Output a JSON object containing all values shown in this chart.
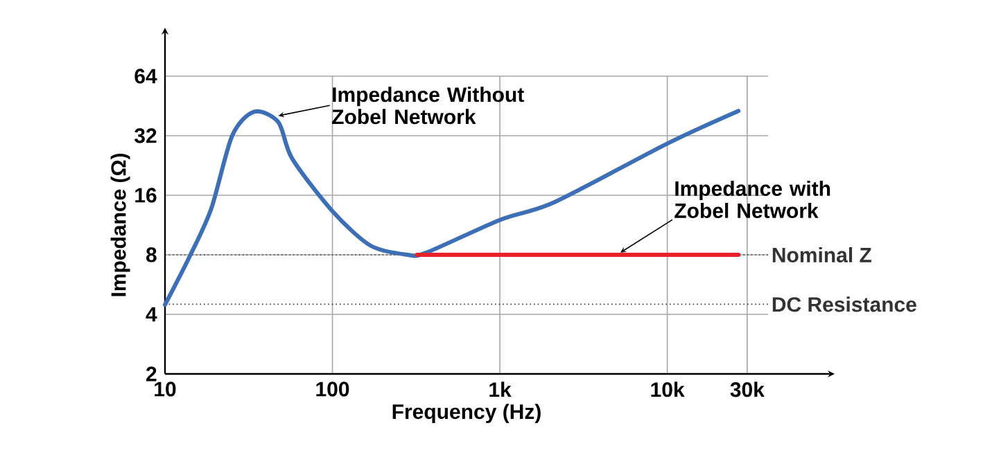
{
  "chart_data": {
    "type": "line",
    "xlabel": "Frequency (Hz)",
    "ylabel": "Impedance (Ω)",
    "log": "xy",
    "xlim": [
      10,
      40000
    ],
    "ylim": [
      2,
      64
    ],
    "xticks": [
      10,
      100,
      {
        "value": 1000,
        "label": "1k"
      },
      {
        "value": 10000,
        "label": "10k"
      },
      {
        "value": 30000,
        "label": "30k"
      }
    ],
    "yticks": [
      2,
      4,
      8,
      16,
      32,
      64
    ],
    "grid": true,
    "series": [
      {
        "color": "#3d6fb6",
        "x": [
          10,
          14.2,
          18.9,
          25.2,
          34.1,
          47.5,
          57.5,
          100,
          169,
          282,
          363,
          1000,
          2130,
          10000,
          26600
        ],
        "values": [
          4.47,
          8,
          13.7,
          32,
          42.3,
          37.5,
          24.5,
          13.3,
          8.9,
          8,
          8.2,
          12,
          14.8,
          29.2,
          42.7
        ]
      },
      {
        "color": "#e8222b",
        "x": [
          320,
          26600
        ],
        "values": [
          8,
          8
        ]
      }
    ],
    "ref_lines": [
      {
        "axis": "y",
        "value": 8,
        "label": "Nominal Z",
        "line_style": "dotted"
      },
      {
        "axis": "y",
        "value": 4.5,
        "label": "DC Resistance",
        "line_style": "dotted"
      }
    ],
    "annotations": [
      {
        "text": "Impedance Without Zobel Network",
        "x": 45,
        "y": 40
      },
      {
        "text": "Impedance with Zobel Network",
        "x": 5000,
        "y": 8
      }
    ]
  }
}
